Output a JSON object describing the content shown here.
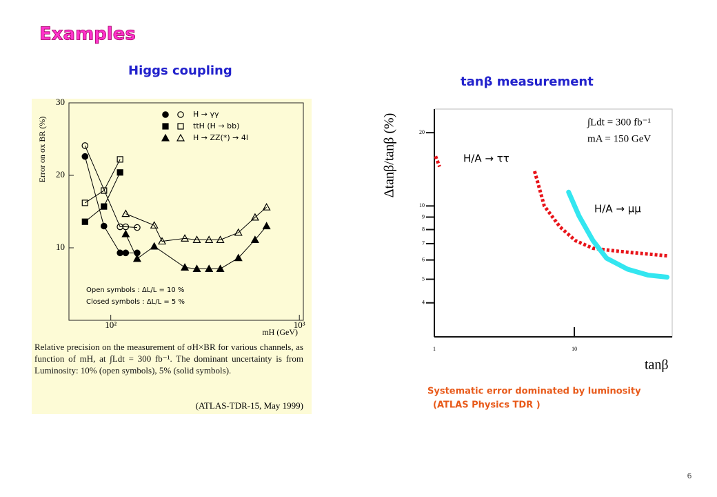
{
  "slide": {
    "title": "Examples",
    "page_number": "6",
    "left": {
      "heading": "Higgs coupling",
      "caption": "Relative precision on the measurement of σH×BR for various channels, as function of mH, at ∫Ldt = 300 fb⁻¹. The dominant uncertainty is from Luminosity: 10% (open symbols), 5% (solid symbols).",
      "source": "(ATLAS-TDR-15, May 1999)",
      "chart_data": {
        "type": "scatter",
        "y_label": "Error on σx BR (%)",
        "x_label": "mH (GeV)",
        "log_x": true,
        "xlim": [
          60,
          1050
        ],
        "xticks": [
          {
            "value": 100,
            "label": "10²"
          },
          {
            "value": 1000,
            "label": "10³"
          }
        ],
        "ylim": [
          0,
          30
        ],
        "yticks": [
          10,
          20,
          30
        ],
        "legend": [
          {
            "label": "H → γγ",
            "marker": "circle"
          },
          {
            "label": "ttH (H → bb)",
            "marker": "square"
          },
          {
            "label": "H → ZZ(*) → 4l",
            "marker": "triangle"
          }
        ],
        "annotations": [
          "Open symbols :  ΔL/L = 10 %",
          "Closed symbols :  ΔL/L = 5 %"
        ],
        "series": [
          {
            "marker": "circle",
            "filled": false,
            "x": [
              73,
              112,
              120,
              138
            ],
            "values": [
              24.1,
              12.9,
              12.9,
              12.8
            ]
          },
          {
            "marker": "circle",
            "filled": true,
            "x": [
              73,
              92,
              112,
              120,
              138
            ],
            "values": [
              22.6,
              13.0,
              9.3,
              9.3,
              9.3
            ]
          },
          {
            "marker": "square",
            "filled": false,
            "x": [
              73,
              92,
              112
            ],
            "values": [
              16.2,
              17.9,
              22.2
            ]
          },
          {
            "marker": "square",
            "filled": true,
            "x": [
              73,
              92,
              112
            ],
            "values": [
              13.6,
              15.7,
              20.4
            ]
          },
          {
            "marker": "triangle",
            "filled": false,
            "x": [
              120,
              170,
              187,
              247,
              286,
              332,
              381,
              475,
              582,
              670
            ],
            "values": [
              14.7,
              13.1,
              10.9,
              11.3,
              11.1,
              11.1,
              11.1,
              12.1,
              14.2,
              15.6
            ]
          },
          {
            "marker": "triangle",
            "filled": true,
            "x": [
              120,
              138,
              170,
              247,
              286,
              332,
              381,
              475,
              582,
              670
            ],
            "values": [
              11.9,
              8.5,
              10.2,
              7.3,
              7.1,
              7.1,
              7.1,
              8.6,
              11.1,
              13.0
            ]
          }
        ]
      }
    },
    "right": {
      "heading": "tanβ measurement",
      "caption": "Systematic error dominated by luminosity",
      "source": "(ATLAS Physics TDR )",
      "chart_data": {
        "type": "line",
        "y_label": "Δtanβ/tanβ (%)",
        "x_label": "tanβ",
        "log_x": true,
        "log_y": true,
        "xlim": [
          1,
          50
        ],
        "xticks": [
          1,
          10
        ],
        "ylim": [
          2.9,
          25
        ],
        "yticks": [
          4,
          5,
          6,
          7,
          8,
          9,
          10,
          20
        ],
        "annotations": [
          "∫Ldt = 300 fb⁻¹",
          "mA = 150 GeV"
        ],
        "series": [
          {
            "name": "H/A → ττ",
            "color": "#e8141a",
            "x": [
              1.02,
              1.09,
              4.9,
              5.2,
              6.1,
              7.9,
              10.2,
              13.6,
              21.4,
              46
            ],
            "values": [
              16.0,
              14.5,
              null,
              13.9,
              10,
              8.2,
              7.2,
              6.7,
              6.5,
              6.24
            ]
          },
          {
            "name": "H/A → μμ",
            "color": "#33e6f0",
            "x": [
              9.1,
              10.8,
              13.6,
              17.0,
              24.0,
              33.6,
              46
            ],
            "values": [
              11.4,
              9.1,
              7.2,
              6.1,
              5.5,
              5.2,
              5.1
            ]
          }
        ]
      }
    }
  }
}
